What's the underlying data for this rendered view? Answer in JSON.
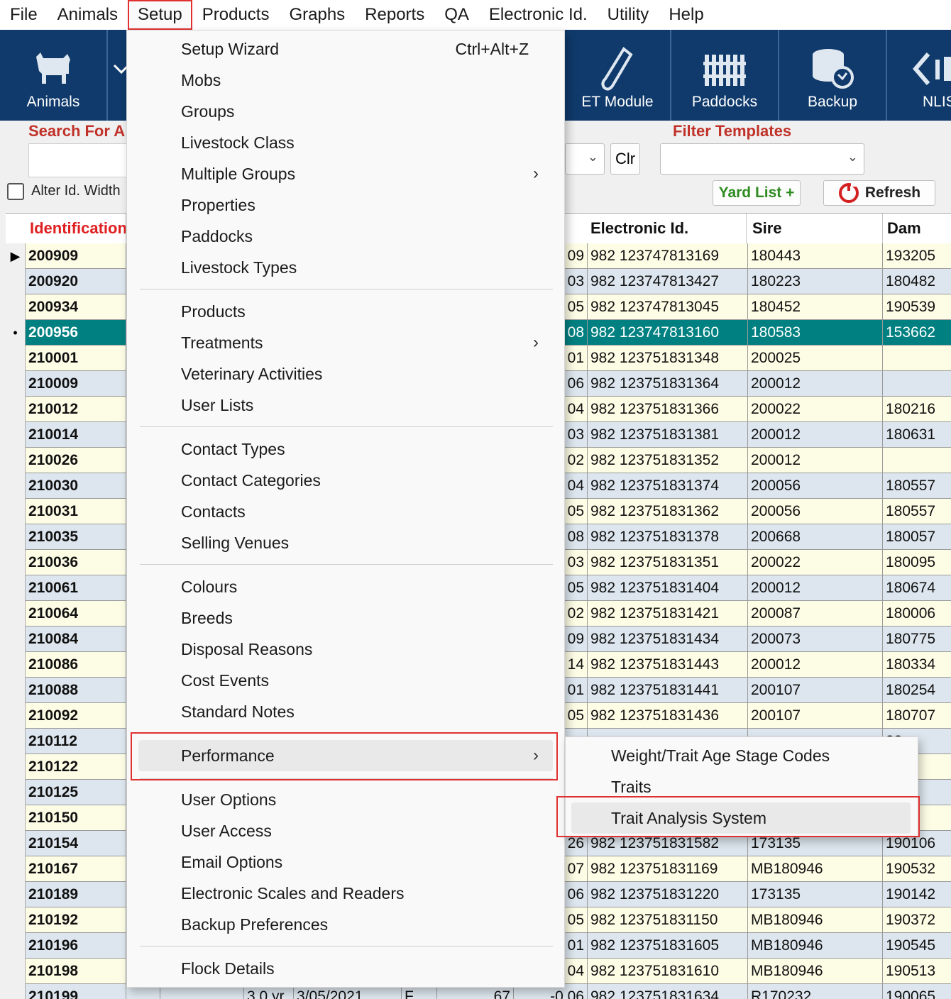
{
  "menubar": [
    "File",
    "Animals",
    "Setup",
    "Products",
    "Graphs",
    "Reports",
    "QA",
    "Electronic Id.",
    "Utility",
    "Help"
  ],
  "toolbar": {
    "animals": "Animals",
    "et_module": "ET Module",
    "paddocks": "Paddocks",
    "backup": "Backup",
    "nlis": "NLIS"
  },
  "search": {
    "label": "Search For A",
    "alter_width_label": "Alter Id. Width",
    "clear_button": "Clr",
    "filter_templates_label": "Filter Templates",
    "yard_list_button": "Yard List +",
    "refresh_button": "Refresh"
  },
  "grid": {
    "headers": {
      "identification": "Identification",
      "electronic_id": "Electronic Id.",
      "sire": "Sire",
      "dam": "Dam"
    },
    "rows": [
      {
        "id": "200909",
        "prev": "09",
        "eid": "982 123747813169",
        "sire": "180443",
        "dam": "193205"
      },
      {
        "id": "200920",
        "prev": "03",
        "eid": "982 123747813427",
        "sire": "180223",
        "dam": "180482"
      },
      {
        "id": "200934",
        "prev": "05",
        "eid": "982 123747813045",
        "sire": "180452",
        "dam": "190539"
      },
      {
        "id": "200956",
        "prev": "08",
        "eid": "982 123747813160",
        "sire": "180583",
        "dam": "153662"
      },
      {
        "id": "210001",
        "prev": "01",
        "eid": "982 123751831348",
        "sire": "200025",
        "dam": ""
      },
      {
        "id": "210009",
        "prev": "06",
        "eid": "982 123751831364",
        "sire": "200012",
        "dam": ""
      },
      {
        "id": "210012",
        "prev": "04",
        "eid": "982 123751831366",
        "sire": "200022",
        "dam": "180216"
      },
      {
        "id": "210014",
        "prev": "03",
        "eid": "982 123751831381",
        "sire": "200012",
        "dam": "180631"
      },
      {
        "id": "210026",
        "prev": "02",
        "eid": "982 123751831352",
        "sire": "200012",
        "dam": ""
      },
      {
        "id": "210030",
        "prev": "04",
        "eid": "982 123751831374",
        "sire": "200056",
        "dam": "180557"
      },
      {
        "id": "210031",
        "prev": "05",
        "eid": "982 123751831362",
        "sire": "200056",
        "dam": "180557"
      },
      {
        "id": "210035",
        "prev": "08",
        "eid": "982 123751831378",
        "sire": "200668",
        "dam": "180057"
      },
      {
        "id": "210036",
        "prev": "03",
        "eid": "982 123751831351",
        "sire": "200022",
        "dam": "180095"
      },
      {
        "id": "210061",
        "prev": "05",
        "eid": "982 123751831404",
        "sire": "200012",
        "dam": "180674"
      },
      {
        "id": "210064",
        "prev": "02",
        "eid": "982 123751831421",
        "sire": "200087",
        "dam": "180006"
      },
      {
        "id": "210084",
        "prev": "09",
        "eid": "982 123751831434",
        "sire": "200073",
        "dam": "180775"
      },
      {
        "id": "210086",
        "prev": "14",
        "eid": "982 123751831443",
        "sire": "200012",
        "dam": "180334"
      },
      {
        "id": "210088",
        "prev": "01",
        "eid": "982 123751831441",
        "sire": "200107",
        "dam": "180254"
      },
      {
        "id": "210092",
        "prev": "05",
        "eid": "982 123751831436",
        "sire": "200107",
        "dam": "180707"
      },
      {
        "id": "210112",
        "prev": "",
        "eid": "",
        "sire": "",
        "dam": "33"
      },
      {
        "id": "210122",
        "prev": "",
        "eid": "",
        "sire": "",
        "dam": "29"
      },
      {
        "id": "210125",
        "prev": "",
        "eid": "",
        "sire": "",
        "dam": "23"
      },
      {
        "id": "210150",
        "prev": "",
        "eid": "",
        "sire": "",
        "dam": "02"
      },
      {
        "id": "210154",
        "prev": "26",
        "eid": "982 123751831582",
        "sire": "173135",
        "dam": "190106"
      },
      {
        "id": "210167",
        "prev": "07",
        "eid": "982 123751831169",
        "sire": "MB180946",
        "dam": "190532"
      },
      {
        "id": "210189",
        "prev": "06",
        "eid": "982 123751831220",
        "sire": "173135",
        "dam": "190142"
      },
      {
        "id": "210192",
        "prev": "05",
        "eid": "982 123751831150",
        "sire": "MB180946",
        "dam": "190372"
      },
      {
        "id": "210196",
        "prev": "01",
        "eid": "982 123751831605",
        "sire": "MB180946",
        "dam": "190545"
      },
      {
        "id": "210198",
        "prev": "04",
        "eid": "982 123751831610",
        "sire": "MB180946",
        "dam": "190513"
      },
      {
        "id": "210199",
        "age": "3.0 yr",
        "dob": "3/05/2021",
        "sex": "F",
        "wt": "67",
        "prev": "-0.06",
        "eid": "982 123751831634",
        "sire": "R170232",
        "dam": "190065"
      }
    ]
  },
  "setup_menu": {
    "items": [
      {
        "label": "Setup Wizard",
        "shortcut": "Ctrl+Alt+Z"
      },
      {
        "label": "Mobs"
      },
      {
        "label": "Groups"
      },
      {
        "label": "Livestock Class"
      },
      {
        "label": "Multiple Groups",
        "submenu": true
      },
      {
        "label": "Properties"
      },
      {
        "label": "Paddocks"
      },
      {
        "label": "Livestock Types"
      },
      {
        "label": "Products"
      },
      {
        "label": "Treatments",
        "submenu": true
      },
      {
        "label": "Veterinary Activities"
      },
      {
        "label": "User Lists"
      },
      {
        "label": "Contact Types"
      },
      {
        "label": "Contact Categories"
      },
      {
        "label": "Contacts"
      },
      {
        "label": "Selling Venues"
      },
      {
        "label": "Colours"
      },
      {
        "label": "Breeds"
      },
      {
        "label": "Disposal Reasons"
      },
      {
        "label": "Cost Events"
      },
      {
        "label": "Standard Notes"
      },
      {
        "label": "Performance",
        "submenu": true
      },
      {
        "label": "User Options"
      },
      {
        "label": "User Access"
      },
      {
        "label": "Email Options"
      },
      {
        "label": "Electronic Scales and Readers"
      },
      {
        "label": "Backup Preferences"
      },
      {
        "label": "Flock Details"
      }
    ]
  },
  "performance_submenu": [
    "Weight/Trait Age Stage Codes",
    "Traits",
    "Trait Analysis System"
  ],
  "colors": {
    "toolbar": "#0f3a6b",
    "selected_row": "#008080",
    "highlight_box": "#e03030",
    "label_red": "#c0322a",
    "row_yellow": "#fdfde6",
    "row_blue": "#dde6ee"
  }
}
